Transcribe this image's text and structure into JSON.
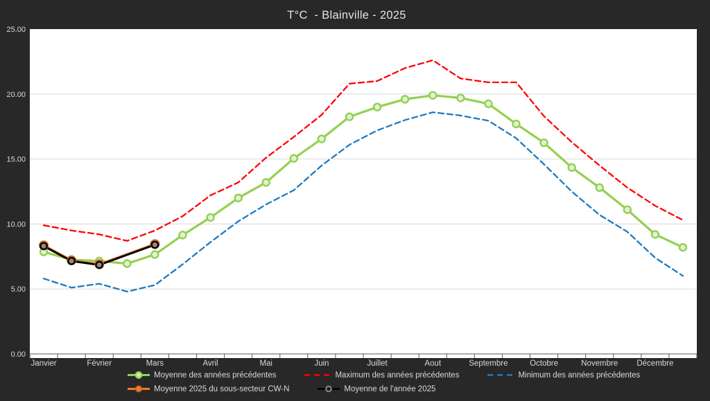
{
  "title": "T°C  - Blainville - 2025",
  "colors": {
    "background": "#282828",
    "plot_background": "#ffffff",
    "gridline": "#d9d9d9",
    "axis_line": "#595959",
    "axis_text": "#d9d9d9",
    "series_green": "#92d050",
    "series_red": "#ff0000",
    "series_blue": "#1e7ac0",
    "series_orange": "#ed7d31",
    "series_black": "#000000"
  },
  "chart_data": {
    "type": "line",
    "title": "T°C  - Blainville - 2025",
    "x_axis": {
      "months": [
        "Janvier",
        "Février",
        "Mars",
        "Avril",
        "Mai",
        "Juin",
        "Juillet",
        "Aout",
        "Septembre",
        "Octobre",
        "Novembre",
        "Décembre"
      ],
      "points_per_month": 2
    },
    "y_axis": {
      "min": 0,
      "max": 25,
      "step": 5,
      "tick_labels": [
        "0.00",
        "5.00",
        "10.00",
        "15.00",
        "20.00",
        "25.00"
      ]
    },
    "grid": true,
    "legend_position": "bottom",
    "series": [
      {
        "key": "moyenne-precedentes",
        "name": "Moyenne des années précédentes",
        "color": "#92d050",
        "style": "solid",
        "markers": true,
        "values": [
          7.85,
          7.25,
          7.15,
          6.95,
          7.65,
          9.15,
          10.5,
          12.0,
          13.2,
          15.05,
          16.55,
          18.25,
          19.0,
          19.6,
          19.9,
          19.7,
          19.25,
          17.7,
          16.25,
          14.35,
          12.8,
          11.1,
          9.2,
          8.2
        ]
      },
      {
        "key": "maximum-precedentes",
        "name": "Maximum des années précédentes",
        "color": "#ff0000",
        "style": "dashed",
        "markers": false,
        "values": [
          9.9,
          9.5,
          9.2,
          8.7,
          9.5,
          10.6,
          12.2,
          13.2,
          15.1,
          16.7,
          18.4,
          20.8,
          21.0,
          22.0,
          22.6,
          21.2,
          20.9,
          20.9,
          18.3,
          16.3,
          14.5,
          12.8,
          11.4,
          10.3
        ]
      },
      {
        "key": "minimum-precedentes",
        "name": "Minimum des années précédentes",
        "color": "#1e7ac0",
        "style": "dashed",
        "markers": false,
        "values": [
          5.8,
          5.1,
          5.4,
          4.8,
          5.3,
          6.9,
          8.6,
          10.2,
          11.5,
          12.6,
          14.5,
          16.1,
          17.2,
          18.0,
          18.6,
          18.35,
          17.95,
          16.6,
          14.6,
          12.5,
          10.7,
          9.4,
          7.4,
          6.0
        ]
      },
      {
        "key": "cwn-2025",
        "name": "Moyenne 2025 du sous-secteur CW-N",
        "color": "#ed7d31",
        "style": "solid",
        "markers": true,
        "values": [
          8.35,
          7.2,
          6.9,
          null,
          8.45,
          null,
          null,
          null,
          null,
          null,
          null,
          null,
          null,
          null,
          null,
          null,
          null,
          null,
          null,
          null,
          null,
          null,
          null,
          null
        ]
      },
      {
        "key": "moyenne-2025",
        "name": "Moyenne de l'année 2025",
        "color": "#000000",
        "style": "solid",
        "markers": true,
        "values": [
          8.3,
          7.15,
          6.85,
          null,
          8.4,
          null,
          null,
          null,
          null,
          null,
          null,
          null,
          null,
          null,
          null,
          null,
          null,
          null,
          null,
          null,
          null,
          null,
          null,
          null
        ]
      }
    ]
  }
}
